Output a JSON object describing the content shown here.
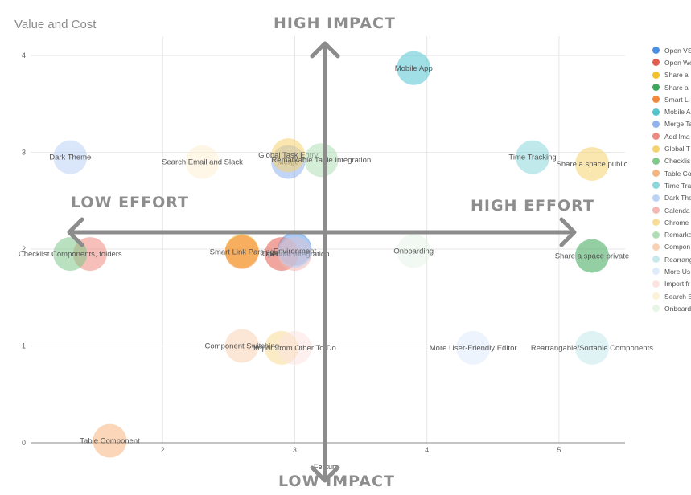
{
  "title": "Value and Cost",
  "quadrant_labels": {
    "top": "HIGH IMPACT",
    "bottom": "LOW IMPACT",
    "left": "LOW EFFORT",
    "right": "HIGH EFFORT"
  },
  "chart_data": {
    "type": "scatter",
    "title": "Value and Cost",
    "xlabel": "Feature",
    "ylabel": "",
    "xlim": [
      1.0,
      5.5
    ],
    "ylim": [
      0,
      4.2
    ],
    "x_ticks": [
      "2",
      "3",
      "4",
      "5"
    ],
    "y_ticks": [
      "0",
      "1",
      "2",
      "3",
      "4"
    ],
    "grid": true,
    "legend_position": "right",
    "series": [
      {
        "name": "Open VS Code",
        "label": "",
        "x": 3.0,
        "y": 2.0,
        "color": "#4a90e2"
      },
      {
        "name": "Open Word",
        "label": "Open Word",
        "x": 2.9,
        "y": 1.95,
        "color": "#e35d4f"
      },
      {
        "name": "Share a space",
        "label": "",
        "x": 2.6,
        "y": 1.98,
        "color": "#f2c12e"
      },
      {
        "name": "Share a space private",
        "label": "Share a space private",
        "x": 5.25,
        "y": 1.93,
        "color": "#3da85a"
      },
      {
        "name": "Smart Link Parsing",
        "label": "Smart Link Parsing",
        "x": 2.6,
        "y": 1.97,
        "color": "#f5893a"
      },
      {
        "name": "Mobile App",
        "label": "Mobile App",
        "x": 3.9,
        "y": 3.87,
        "color": "#52c5cf"
      },
      {
        "name": "Merge Tags",
        "label": "Merge",
        "x": 2.95,
        "y": 2.9,
        "color": "#8fb3ef"
      },
      {
        "name": "Add Image",
        "label": "",
        "x": 1.45,
        "y": 1.95,
        "color": "#ef8a80"
      },
      {
        "name": "Global Task Entry",
        "label": "Global Task Entry",
        "x": 2.95,
        "y": 2.97,
        "color": "#f6d26e"
      },
      {
        "name": "Checklist Components",
        "label": "Checklist Components, folders",
        "x": 1.3,
        "y": 1.95,
        "color": "#7fc98a"
      },
      {
        "name": "Table Component",
        "label": "Table Component",
        "x": 1.6,
        "y": 0.02,
        "color": "#f7b57e"
      },
      {
        "name": "Time Tracking",
        "label": "Time Tracking",
        "x": 4.8,
        "y": 2.95,
        "color": "#8dd7dc"
      },
      {
        "name": "Dark Theme",
        "label": "Dark Theme",
        "x": 1.3,
        "y": 2.95,
        "color": "#bcd2f5"
      },
      {
        "name": "Calendar Integration",
        "label": "Calendar Integration",
        "x": 3.0,
        "y": 1.95,
        "color": "#f4b7b1"
      },
      {
        "name": "Chrome Extension",
        "label": "",
        "x": 2.9,
        "y": 0.98,
        "color": "#f9dd95"
      },
      {
        "name": "Remarkable Table Integration",
        "label": "Remarkable Table Integration",
        "x": 3.2,
        "y": 2.92,
        "color": "#b0dfb7"
      },
      {
        "name": "Component Switching",
        "label": "Component Switching",
        "x": 2.6,
        "y": 1.0,
        "color": "#f9d1b2"
      },
      {
        "name": "Rearrangable/Sortable Components",
        "label": "Rearrangable/Sortable Components",
        "x": 5.25,
        "y": 0.98,
        "color": "#c5e9ed"
      },
      {
        "name": "More User-Friendly Editor",
        "label": "More User-Friendly Editor",
        "x": 4.35,
        "y": 0.98,
        "color": "#deebfb"
      },
      {
        "name": "Import from Other To-Do",
        "label": "Import from Other To-Do",
        "x": 3.0,
        "y": 0.98,
        "color": "#fbe3e0"
      },
      {
        "name": "Search Email and Slack",
        "label": "Search Email and Slack",
        "x": 2.3,
        "y": 2.9,
        "color": "#fdf1d6"
      },
      {
        "name": "Onboarding",
        "label": "Onboarding",
        "x": 3.9,
        "y": 1.98,
        "color": "#e7f4e8"
      },
      {
        "name": "Share a space public",
        "label": "Share a space public",
        "x": 5.25,
        "y": 2.88,
        "color": "#f6d26e"
      },
      {
        "name": "Environment",
        "label": "Environment",
        "x": 3.0,
        "y": 1.98,
        "color": "#bcd2f5"
      }
    ]
  },
  "legend": [
    {
      "label": "Open VS",
      "color": "#4a90e2"
    },
    {
      "label": "Open Wo",
      "color": "#e35d4f"
    },
    {
      "label": "Share a",
      "color": "#f2c12e"
    },
    {
      "label": "Share a",
      "color": "#3da85a"
    },
    {
      "label": "Smart Li",
      "color": "#f5893a"
    },
    {
      "label": "Mobile A",
      "color": "#52c5cf"
    },
    {
      "label": "Merge Ta",
      "color": "#8fb3ef"
    },
    {
      "label": "Add Ima",
      "color": "#ef8a80"
    },
    {
      "label": "Global T",
      "color": "#f6d26e"
    },
    {
      "label": "Checklis",
      "color": "#7fc98a"
    },
    {
      "label": "Table Co",
      "color": "#f7b57e"
    },
    {
      "label": "Time Tra",
      "color": "#8dd7dc"
    },
    {
      "label": "Dark The",
      "color": "#bcd2f5"
    },
    {
      "label": "Calenda",
      "color": "#f4b7b1"
    },
    {
      "label": "Chrome",
      "color": "#f9dd95"
    },
    {
      "label": "Remarka",
      "color": "#b0dfb7"
    },
    {
      "label": "Compon",
      "color": "#f9d1b2"
    },
    {
      "label": "Rearrang",
      "color": "#c5e9ed"
    },
    {
      "label": "More Us",
      "color": "#deebfb"
    },
    {
      "label": "Import fr",
      "color": "#fbe3e0"
    },
    {
      "label": "Search E",
      "color": "#fdf1d6"
    },
    {
      "label": "Onboard",
      "color": "#e7f4e8"
    }
  ]
}
